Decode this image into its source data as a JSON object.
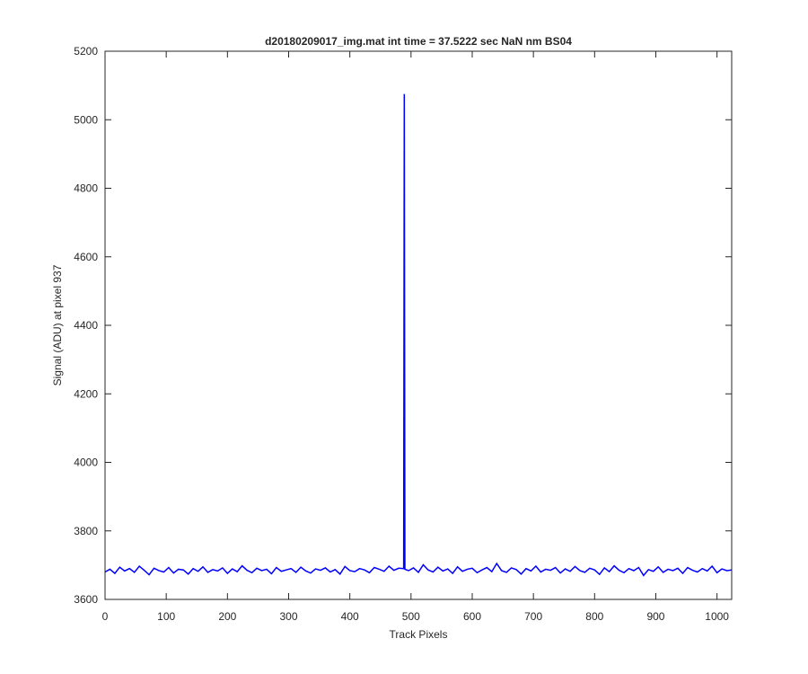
{
  "chart_data": {
    "type": "line",
    "title": "d20180209017_img.mat int time = 37.5222 sec  NaN nm BS04",
    "xlabel": "Track Pixels",
    "ylabel": "Signal (ADU) at pixel 937",
    "color": "#0000ff",
    "xlim": [
      0,
      1024
    ],
    "ylim": [
      3600,
      5200
    ],
    "xticks": [
      0,
      100,
      200,
      300,
      400,
      500,
      600,
      700,
      800,
      900,
      1000
    ],
    "yticks": [
      3600,
      3800,
      4000,
      4200,
      4400,
      4600,
      4800,
      5000,
      5200
    ],
    "grid": false,
    "x": [
      0,
      8,
      16,
      24,
      32,
      40,
      48,
      56,
      64,
      72,
      80,
      88,
      96,
      104,
      112,
      120,
      128,
      136,
      144,
      152,
      160,
      168,
      176,
      184,
      192,
      200,
      208,
      216,
      224,
      232,
      240,
      248,
      256,
      264,
      272,
      280,
      288,
      296,
      304,
      312,
      320,
      328,
      336,
      344,
      352,
      360,
      368,
      376,
      384,
      392,
      400,
      408,
      416,
      424,
      432,
      440,
      448,
      456,
      464,
      472,
      480,
      488,
      489,
      490,
      496,
      504,
      512,
      520,
      528,
      536,
      544,
      552,
      560,
      568,
      576,
      584,
      592,
      600,
      608,
      616,
      624,
      632,
      640,
      648,
      656,
      664,
      672,
      680,
      688,
      696,
      704,
      712,
      720,
      728,
      736,
      744,
      752,
      760,
      768,
      776,
      784,
      792,
      800,
      808,
      816,
      824,
      832,
      840,
      848,
      856,
      864,
      872,
      880,
      888,
      896,
      904,
      912,
      920,
      928,
      936,
      944,
      952,
      960,
      968,
      976,
      984,
      992,
      1000,
      1008,
      1016,
      1024
    ],
    "values": [
      3680,
      3688,
      3676,
      3694,
      3683,
      3690,
      3679,
      3697,
      3685,
      3672,
      3691,
      3684,
      3680,
      3693,
      3677,
      3688,
      3686,
      3674,
      3690,
      3682,
      3695,
      3679,
      3687,
      3683,
      3692,
      3676,
      3689,
      3681,
      3698,
      3685,
      3678,
      3691,
      3684,
      3688,
      3675,
      3693,
      3682,
      3686,
      3690,
      3679,
      3694,
      3683,
      3677,
      3689,
      3685,
      3692,
      3680,
      3687,
      3674,
      3696,
      3684,
      3681,
      3690,
      3686,
      3678,
      3693,
      3688,
      3682,
      3697,
      3685,
      3691,
      3690,
      5075,
      3688,
      3684,
      3692,
      3679,
      3701,
      3686,
      3680,
      3694,
      3683,
      3689,
      3676,
      3695,
      3682,
      3688,
      3691,
      3678,
      3686,
      3693,
      3681,
      3705,
      3684,
      3679,
      3692,
      3687,
      3674,
      3690,
      3683,
      3697,
      3680,
      3688,
      3685,
      3693,
      3677,
      3689,
      3682,
      3696,
      3684,
      3679,
      3691,
      3686,
      3673,
      3692,
      3681,
      3698,
      3685,
      3678,
      3690,
      3684,
      3693,
      3670,
      3687,
      3682,
      3695,
      3679,
      3688,
      3684,
      3691,
      3676,
      3693,
      3685,
      3680,
      3690,
      3683,
      3697,
      3678,
      3689,
      3684,
      3686
    ]
  }
}
